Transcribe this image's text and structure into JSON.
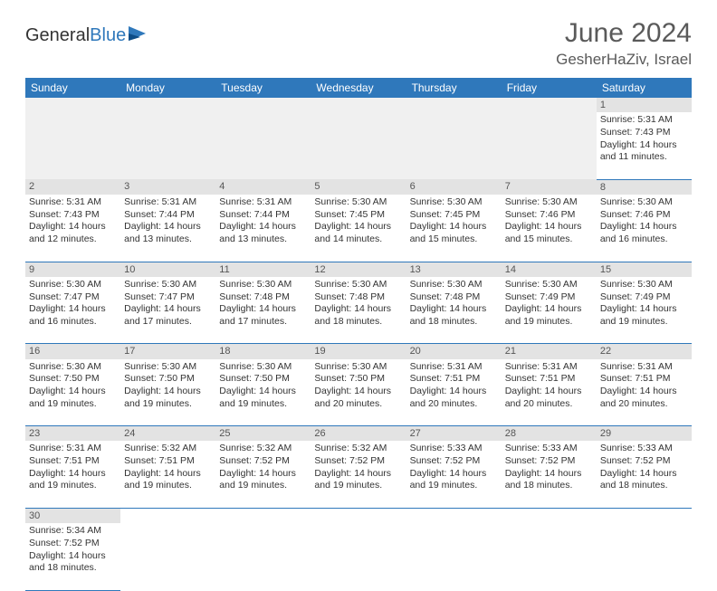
{
  "logo": {
    "text1": "General",
    "text2": "Blue",
    "color_dark": "#333333",
    "color_blue": "#2f78bb"
  },
  "title": "June 2024",
  "location": "GesherHaZiv, Israel",
  "header_bg": "#2f78bb",
  "daynum_bg": "#e3e3e3",
  "border_color": "#2f78bb",
  "day_headers": [
    "Sunday",
    "Monday",
    "Tuesday",
    "Wednesday",
    "Thursday",
    "Friday",
    "Saturday"
  ],
  "weeks": [
    [
      null,
      null,
      null,
      null,
      null,
      null,
      {
        "n": "1",
        "sr": "Sunrise: 5:31 AM",
        "ss": "Sunset: 7:43 PM",
        "d1": "Daylight: 14 hours",
        "d2": "and 11 minutes."
      }
    ],
    [
      {
        "n": "2",
        "sr": "Sunrise: 5:31 AM",
        "ss": "Sunset: 7:43 PM",
        "d1": "Daylight: 14 hours",
        "d2": "and 12 minutes."
      },
      {
        "n": "3",
        "sr": "Sunrise: 5:31 AM",
        "ss": "Sunset: 7:44 PM",
        "d1": "Daylight: 14 hours",
        "d2": "and 13 minutes."
      },
      {
        "n": "4",
        "sr": "Sunrise: 5:31 AM",
        "ss": "Sunset: 7:44 PM",
        "d1": "Daylight: 14 hours",
        "d2": "and 13 minutes."
      },
      {
        "n": "5",
        "sr": "Sunrise: 5:30 AM",
        "ss": "Sunset: 7:45 PM",
        "d1": "Daylight: 14 hours",
        "d2": "and 14 minutes."
      },
      {
        "n": "6",
        "sr": "Sunrise: 5:30 AM",
        "ss": "Sunset: 7:45 PM",
        "d1": "Daylight: 14 hours",
        "d2": "and 15 minutes."
      },
      {
        "n": "7",
        "sr": "Sunrise: 5:30 AM",
        "ss": "Sunset: 7:46 PM",
        "d1": "Daylight: 14 hours",
        "d2": "and 15 minutes."
      },
      {
        "n": "8",
        "sr": "Sunrise: 5:30 AM",
        "ss": "Sunset: 7:46 PM",
        "d1": "Daylight: 14 hours",
        "d2": "and 16 minutes."
      }
    ],
    [
      {
        "n": "9",
        "sr": "Sunrise: 5:30 AM",
        "ss": "Sunset: 7:47 PM",
        "d1": "Daylight: 14 hours",
        "d2": "and 16 minutes."
      },
      {
        "n": "10",
        "sr": "Sunrise: 5:30 AM",
        "ss": "Sunset: 7:47 PM",
        "d1": "Daylight: 14 hours",
        "d2": "and 17 minutes."
      },
      {
        "n": "11",
        "sr": "Sunrise: 5:30 AM",
        "ss": "Sunset: 7:48 PM",
        "d1": "Daylight: 14 hours",
        "d2": "and 17 minutes."
      },
      {
        "n": "12",
        "sr": "Sunrise: 5:30 AM",
        "ss": "Sunset: 7:48 PM",
        "d1": "Daylight: 14 hours",
        "d2": "and 18 minutes."
      },
      {
        "n": "13",
        "sr": "Sunrise: 5:30 AM",
        "ss": "Sunset: 7:48 PM",
        "d1": "Daylight: 14 hours",
        "d2": "and 18 minutes."
      },
      {
        "n": "14",
        "sr": "Sunrise: 5:30 AM",
        "ss": "Sunset: 7:49 PM",
        "d1": "Daylight: 14 hours",
        "d2": "and 19 minutes."
      },
      {
        "n": "15",
        "sr": "Sunrise: 5:30 AM",
        "ss": "Sunset: 7:49 PM",
        "d1": "Daylight: 14 hours",
        "d2": "and 19 minutes."
      }
    ],
    [
      {
        "n": "16",
        "sr": "Sunrise: 5:30 AM",
        "ss": "Sunset: 7:50 PM",
        "d1": "Daylight: 14 hours",
        "d2": "and 19 minutes."
      },
      {
        "n": "17",
        "sr": "Sunrise: 5:30 AM",
        "ss": "Sunset: 7:50 PM",
        "d1": "Daylight: 14 hours",
        "d2": "and 19 minutes."
      },
      {
        "n": "18",
        "sr": "Sunrise: 5:30 AM",
        "ss": "Sunset: 7:50 PM",
        "d1": "Daylight: 14 hours",
        "d2": "and 19 minutes."
      },
      {
        "n": "19",
        "sr": "Sunrise: 5:30 AM",
        "ss": "Sunset: 7:50 PM",
        "d1": "Daylight: 14 hours",
        "d2": "and 20 minutes."
      },
      {
        "n": "20",
        "sr": "Sunrise: 5:31 AM",
        "ss": "Sunset: 7:51 PM",
        "d1": "Daylight: 14 hours",
        "d2": "and 20 minutes."
      },
      {
        "n": "21",
        "sr": "Sunrise: 5:31 AM",
        "ss": "Sunset: 7:51 PM",
        "d1": "Daylight: 14 hours",
        "d2": "and 20 minutes."
      },
      {
        "n": "22",
        "sr": "Sunrise: 5:31 AM",
        "ss": "Sunset: 7:51 PM",
        "d1": "Daylight: 14 hours",
        "d2": "and 20 minutes."
      }
    ],
    [
      {
        "n": "23",
        "sr": "Sunrise: 5:31 AM",
        "ss": "Sunset: 7:51 PM",
        "d1": "Daylight: 14 hours",
        "d2": "and 19 minutes."
      },
      {
        "n": "24",
        "sr": "Sunrise: 5:32 AM",
        "ss": "Sunset: 7:51 PM",
        "d1": "Daylight: 14 hours",
        "d2": "and 19 minutes."
      },
      {
        "n": "25",
        "sr": "Sunrise: 5:32 AM",
        "ss": "Sunset: 7:52 PM",
        "d1": "Daylight: 14 hours",
        "d2": "and 19 minutes."
      },
      {
        "n": "26",
        "sr": "Sunrise: 5:32 AM",
        "ss": "Sunset: 7:52 PM",
        "d1": "Daylight: 14 hours",
        "d2": "and 19 minutes."
      },
      {
        "n": "27",
        "sr": "Sunrise: 5:33 AM",
        "ss": "Sunset: 7:52 PM",
        "d1": "Daylight: 14 hours",
        "d2": "and 19 minutes."
      },
      {
        "n": "28",
        "sr": "Sunrise: 5:33 AM",
        "ss": "Sunset: 7:52 PM",
        "d1": "Daylight: 14 hours",
        "d2": "and 18 minutes."
      },
      {
        "n": "29",
        "sr": "Sunrise: 5:33 AM",
        "ss": "Sunset: 7:52 PM",
        "d1": "Daylight: 14 hours",
        "d2": "and 18 minutes."
      }
    ],
    [
      {
        "n": "30",
        "sr": "Sunrise: 5:34 AM",
        "ss": "Sunset: 7:52 PM",
        "d1": "Daylight: 14 hours",
        "d2": "and 18 minutes."
      },
      null,
      null,
      null,
      null,
      null,
      null
    ]
  ]
}
